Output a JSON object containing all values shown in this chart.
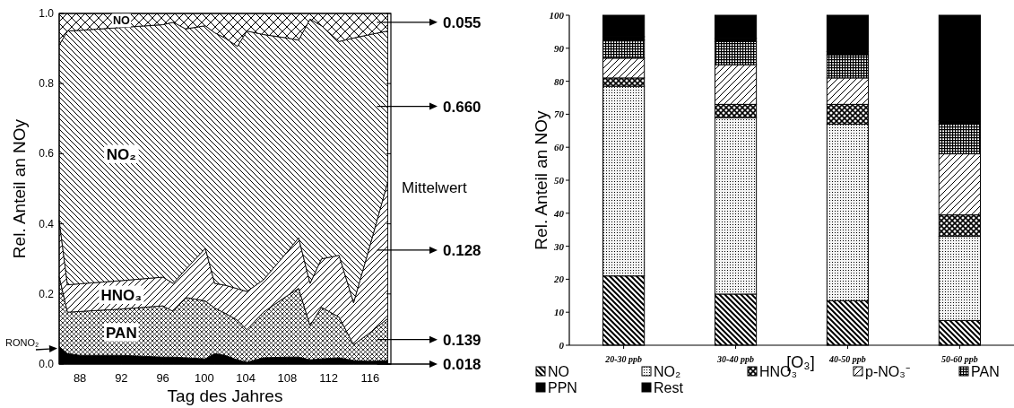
{
  "chart_data": [
    {
      "type": "area",
      "stacked": true,
      "xlabel": "Tag des Jahres",
      "ylabel": "Rel. Anteil an NOy",
      "legend": false,
      "x": [
        86,
        86.8,
        88,
        92,
        96,
        97,
        98.2,
        100.1,
        101,
        102,
        103.2,
        104.1,
        105.7,
        108,
        109.1,
        110.2,
        111.3,
        113,
        114.4,
        116,
        117.7
      ],
      "xlim": [
        86,
        118
      ],
      "xticks": [
        88,
        92,
        96,
        100,
        104,
        108,
        112,
        116
      ],
      "ylim": [
        0,
        1
      ],
      "yticks": [
        {
          "value": 0,
          "label": "0.0"
        },
        0.2,
        0.4,
        0.6,
        0.8,
        {
          "value": 1,
          "label": "1.0"
        }
      ],
      "series": [
        {
          "name": "RONO₂",
          "color": "#000000",
          "values": [
            0.05,
            0.03,
            0.025,
            0.025,
            0.02,
            0.02,
            0.018,
            0.015,
            0.03,
            0.025,
            0.012,
            0.005,
            0.018,
            0.02,
            0.02,
            0.012,
            0.015,
            0.018,
            0.01,
            0.008,
            0.01
          ]
        },
        {
          "name": "PAN",
          "color": "#000000",
          "values": [
            0.2,
            0.118,
            0.125,
            0.132,
            0.146,
            0.13,
            0.172,
            0.165,
            0.13,
            0.12,
            0.113,
            0.093,
            0.13,
            0.175,
            0.196,
            0.098,
            0.147,
            0.116,
            0.045,
            0.082,
            0.12
          ]
        },
        {
          "name": "HNO₃",
          "color": "#000000",
          "values": [
            0.16,
            0.078,
            0.079,
            0.081,
            0.082,
            0.08,
            0.08,
            0.15,
            0.07,
            0.08,
            0.09,
            0.109,
            0.092,
            0.125,
            0.144,
            0.12,
            0.138,
            0.176,
            0.12,
            0.25,
            0.39
          ]
        },
        {
          "name": "NO₂",
          "color": "#000000",
          "values": [
            0.5,
            0.724,
            0.723,
            0.722,
            0.72,
            0.745,
            0.686,
            0.635,
            0.715,
            0.705,
            0.691,
            0.743,
            0.7,
            0.61,
            0.564,
            0.754,
            0.665,
            0.61,
            0.755,
            0.6,
            0.43
          ]
        },
        {
          "name": "NO",
          "color": "#000000",
          "values": [
            0.09,
            0.05,
            0.048,
            0.04,
            0.032,
            0.025,
            0.044,
            0.035,
            0.055,
            0.07,
            0.094,
            0.05,
            0.06,
            0.07,
            0.076,
            0.016,
            0.035,
            0.08,
            0.07,
            0.06,
            0.05
          ]
        }
      ],
      "y2label": "Mittelwert",
      "annotations": [
        "0.055",
        "0.660",
        "0.128",
        "0.139",
        "0.018"
      ]
    },
    {
      "type": "bar",
      "stacked": true,
      "xlabel": "[O₃]",
      "ylabel": "Rel. Anteil an NOy",
      "legend": "bottom",
      "categories": [
        "20-30 ppb",
        "30-40 ppb",
        "40-50 ppb",
        "50-60 ppb"
      ],
      "ylim": [
        0,
        100
      ],
      "yticks": [
        0,
        10,
        20,
        30,
        40,
        50,
        60,
        70,
        80,
        90,
        100
      ],
      "series": [
        {
          "name": "NO",
          "color": "#000000",
          "values": [
            21,
            15.5,
            13.5,
            7.5
          ]
        },
        {
          "name": "NO₂",
          "color": "#000000",
          "values": [
            57.5,
            53.5,
            53.5,
            25.5
          ]
        },
        {
          "name": "HNO₃",
          "color": "#000000",
          "values": [
            2.5,
            4,
            6,
            6.5
          ]
        },
        {
          "name": "p-NO₃⁻",
          "color": "#000000",
          "values": [
            6,
            12,
            8,
            18.5
          ]
        },
        {
          "name": "PAN",
          "color": "#000000",
          "values": [
            5.5,
            7,
            7,
            9
          ]
        },
        {
          "name": "PPN",
          "color": "#000000",
          "values": [
            1,
            1,
            1,
            1
          ]
        },
        {
          "name": "Rest",
          "color": "#000000",
          "values": [
            6.5,
            7,
            11,
            32
          ]
        }
      ]
    }
  ]
}
